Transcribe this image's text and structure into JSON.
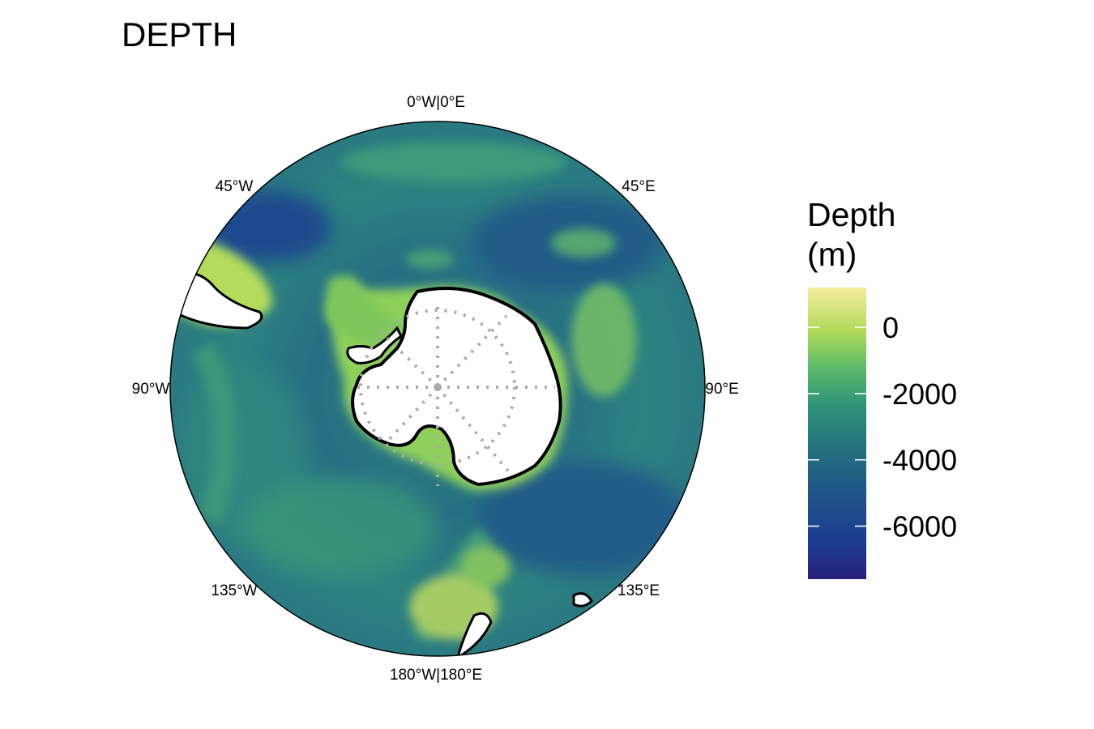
{
  "title": "DEPTH",
  "map": {
    "projection": "south polar stereographic",
    "longitude_labels": {
      "top": "0°W|0°E",
      "top_right": "45°E",
      "right": "90°E",
      "bottom_right": "135°E",
      "bottom": "180°W|180°E",
      "bottom_left": "135°W",
      "left": "90°W",
      "top_left": "45°W"
    },
    "graticule": "dotted grey",
    "land_color": "#ffffff",
    "coastline_color": "#000000"
  },
  "legend": {
    "title_line1": "Depth",
    "title_line2": "(m)",
    "ticks": [
      "0",
      "-2000",
      "-4000",
      "-6000"
    ],
    "tick_values": [
      0,
      -2000,
      -4000,
      -6000
    ],
    "range": [
      -7600,
      1200
    ],
    "colors": [
      "#f6ec9a",
      "#cfe463",
      "#8fcf55",
      "#4fb56e",
      "#2a9078",
      "#216c80",
      "#1e4f87",
      "#1b3a91",
      "#25207a"
    ]
  }
}
